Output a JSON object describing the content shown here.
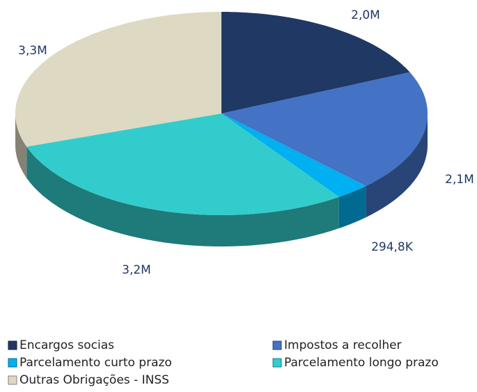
{
  "chart_data": {
    "type": "pie",
    "categories": [
      "Encargos socias",
      "Impostos a recolher",
      "Parcelamento curto prazo",
      "Parcelamento longo prazo",
      "Outras Obrigações - INSS"
    ],
    "values": [
      2000000,
      2100000,
      294800,
      3200000,
      3300000
    ],
    "value_labels": [
      "2,0M",
      "2,1M",
      "294,8K",
      "3,2M",
      "3,3M"
    ],
    "colors": [
      "#1f3864",
      "#4472c4",
      "#00b0f0",
      "#33cccc",
      "#ddd9c3"
    ],
    "legend": "bottom"
  }
}
